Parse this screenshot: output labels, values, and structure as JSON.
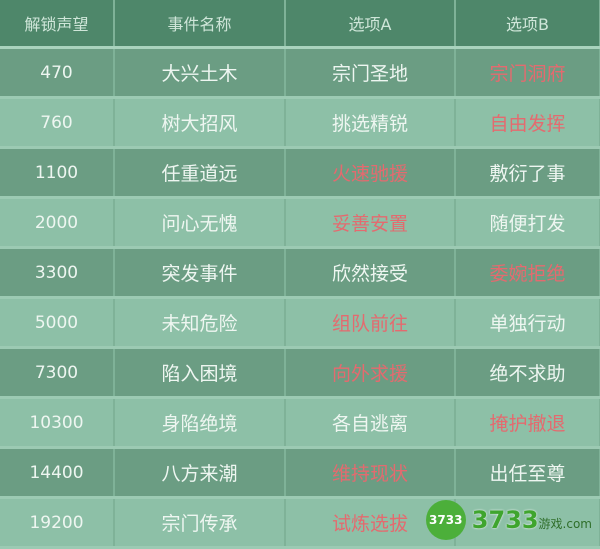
{
  "headers": [
    "解锁声望",
    "事件名称",
    "选项A",
    "选项B"
  ],
  "rows": [
    {
      "rep": "470",
      "event": "大兴土木",
      "a": "宗门圣地",
      "b": "宗门洞府",
      "red": "b"
    },
    {
      "rep": "760",
      "event": "树大招风",
      "a": "挑选精锐",
      "b": "自由发挥",
      "red": "b"
    },
    {
      "rep": "1100",
      "event": "任重道远",
      "a": "火速驰援",
      "b": "敷衍了事",
      "red": "a"
    },
    {
      "rep": "2000",
      "event": "问心无愧",
      "a": "妥善安置",
      "b": "随便打发",
      "red": "a"
    },
    {
      "rep": "3300",
      "event": "突发事件",
      "a": "欣然接受",
      "b": "委婉拒绝",
      "red": "b"
    },
    {
      "rep": "5000",
      "event": "未知危险",
      "a": "组队前往",
      "b": "单独行动",
      "red": "a"
    },
    {
      "rep": "7300",
      "event": "陷入困境",
      "a": "向外求援",
      "b": "绝不求助",
      "red": "a"
    },
    {
      "rep": "10300",
      "event": "身陷绝境",
      "a": "各自逃离",
      "b": "掩护撤退",
      "red": "b"
    },
    {
      "rep": "14400",
      "event": "八方来潮",
      "a": "维持现状",
      "b": "出任至尊",
      "red": "a"
    },
    {
      "rep": "19200",
      "event": "宗门传承",
      "a": "试炼选拔",
      "b": "",
      "red": "a"
    }
  ],
  "colors": {
    "highlight": "#e46a6f",
    "header": "#4e876a"
  },
  "watermark": {
    "badge": "3733",
    "brand": "3733",
    "suffix": "游戏.com"
  }
}
